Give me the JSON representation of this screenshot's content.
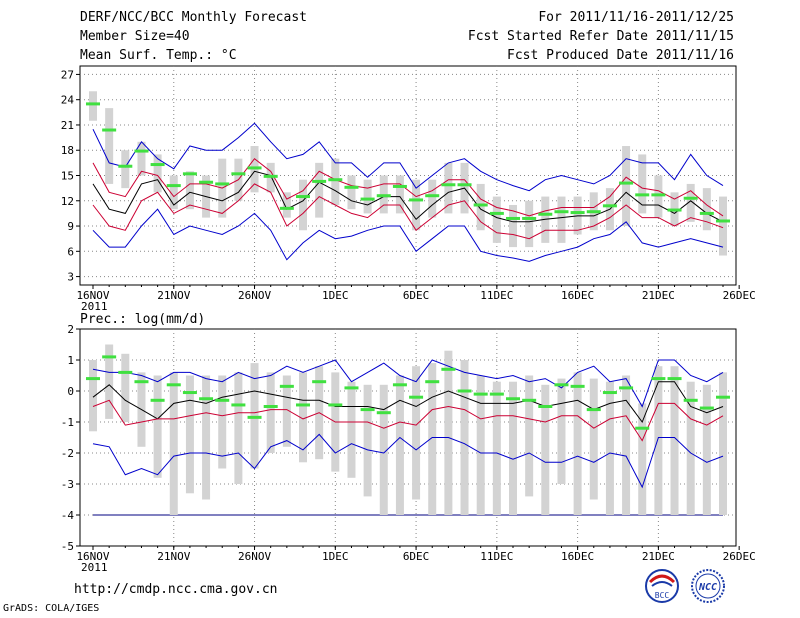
{
  "header": {
    "title": "DERF/NCC/BCC Monthly Forecast",
    "member_size": "Member Size=40",
    "variable_1": "Mean Surf. Temp.: °C",
    "forecast_period": "For 2011/11/16-2011/12/25",
    "started_date": "Fcst Started Refer Date 2011/11/15",
    "produced_date": "Fcst Produced Date 2011/11/16"
  },
  "footer": {
    "url": "http://cmdp.ncc.cma.gov.cn",
    "credit": "GrADS: COLA/IGES",
    "logo_left_text": "BCC",
    "logo_right_text": "NCC"
  },
  "colors": {
    "box": "#d3d3d3",
    "median": "#40e040",
    "ensemble_mean": "#000000",
    "inner_band": "#cc0033",
    "outer_band": "#0000cc",
    "floor_line": "#000080"
  },
  "chart_data": [
    {
      "type": "line",
      "title": "Mean Surf. Temp.: °C",
      "x": [
        "16NOV",
        "17NOV",
        "18NOV",
        "19NOV",
        "20NOV",
        "21NOV",
        "22NOV",
        "23NOV",
        "24NOV",
        "25NOV",
        "26NOV",
        "27NOV",
        "28NOV",
        "29NOV",
        "30NOV",
        "1DEC",
        "2DEC",
        "3DEC",
        "4DEC",
        "5DEC",
        "6DEC",
        "7DEC",
        "8DEC",
        "9DEC",
        "10DEC",
        "11DEC",
        "12DEC",
        "13DEC",
        "14DEC",
        "15DEC",
        "16DEC",
        "17DEC",
        "18DEC",
        "19DEC",
        "20DEC",
        "21DEC",
        "22DEC",
        "23DEC",
        "24DEC",
        "25DEC"
      ],
      "x_tick_labels": [
        "16NOV",
        "21NOV",
        "26NOV",
        "1DEC",
        "6DEC",
        "11DEC",
        "16DEC",
        "21DEC",
        "26DEC"
      ],
      "x_year_label": "2011",
      "ylim": [
        2,
        28
      ],
      "y_ticks": [
        3,
        6,
        9,
        12,
        15,
        18,
        21,
        24,
        27
      ],
      "grid": true,
      "box_low": [
        21.5,
        14,
        13.5,
        15,
        13,
        11,
        11,
        10,
        10,
        12,
        13,
        13,
        10,
        8.5,
        10,
        11.5,
        11,
        10.5,
        10.5,
        10.5,
        8.5,
        10,
        10.5,
        10.5,
        8.5,
        7,
        6.5,
        6.5,
        7,
        7,
        8,
        8.5,
        8.5,
        9,
        10.5,
        10,
        9,
        9.5,
        8.5,
        5.5
      ],
      "box_high": [
        25,
        23,
        18,
        19,
        17.5,
        15,
        15.5,
        15,
        17,
        17,
        18.5,
        16.5,
        13,
        14.5,
        16.5,
        17,
        15,
        14.5,
        15,
        15,
        14.5,
        14.5,
        16.5,
        16.5,
        14,
        12.5,
        11.5,
        12,
        12.5,
        12.5,
        12.5,
        13,
        13.5,
        18.5,
        17.5,
        15,
        13,
        14,
        13.5,
        12.5
      ],
      "series": [
        {
          "name": "median",
          "values": [
            23.5,
            20.4,
            16.1,
            17.9,
            16.3,
            13.8,
            15.2,
            14.2,
            14.0,
            15.2,
            15.9,
            14.9,
            11.1,
            12.5,
            14.3,
            14.5,
            13.6,
            12.2,
            12.6,
            13.7,
            12.1,
            12.6,
            13.9,
            13.9,
            11.5,
            10.5,
            9.9,
            9.9,
            10.4,
            10.7,
            10.6,
            10.7,
            11.4,
            14.1,
            12.7,
            12.7,
            10.9,
            12.3,
            10.5,
            9.6
          ]
        },
        {
          "name": "upper_outer",
          "values": [
            20.5,
            16.5,
            16,
            19,
            17,
            15.8,
            18.5,
            18,
            18,
            19.5,
            21.2,
            19,
            17,
            17.5,
            19,
            16.5,
            16.5,
            14.8,
            16.5,
            16.5,
            13.5,
            15,
            16.5,
            17,
            15.5,
            14.5,
            13.8,
            13.2,
            14.5,
            15,
            14.5,
            14,
            15,
            17,
            16.5,
            16.5,
            14.5,
            17.5,
            15,
            13.8
          ]
        },
        {
          "name": "upper_inner",
          "values": [
            16.5,
            13,
            12.5,
            15.5,
            15,
            12.5,
            14,
            14,
            13.5,
            14.5,
            17,
            15.5,
            12.2,
            13.2,
            15.5,
            14.5,
            13.8,
            13.5,
            14,
            14,
            12.5,
            13.2,
            14.5,
            14.5,
            12.2,
            11.2,
            10.8,
            10.2,
            10.8,
            11.2,
            11.2,
            11.2,
            12.5,
            14.8,
            13.5,
            13.2,
            12.2,
            13.2,
            11.5,
            10.2
          ]
        },
        {
          "name": "mean",
          "values": [
            14,
            11,
            10.5,
            14,
            14.5,
            11.5,
            13,
            12.5,
            12,
            13,
            15.5,
            15,
            11,
            12,
            14.2,
            13.2,
            12,
            11.5,
            12.5,
            12.5,
            9.8,
            11.5,
            13,
            13.5,
            11,
            10,
            9.5,
            9.5,
            9.8,
            10,
            10.2,
            10.2,
            11,
            13,
            11.5,
            11.5,
            10.5,
            12,
            10.5,
            9.5
          ]
        },
        {
          "name": "lower_inner",
          "values": [
            11.5,
            9,
            8.5,
            12,
            13,
            10.5,
            11.5,
            11,
            10.5,
            12,
            14,
            13,
            9,
            10.5,
            12.5,
            11.5,
            10.5,
            10,
            11.5,
            11.5,
            8.5,
            10,
            11.5,
            12,
            9.5,
            8.2,
            8,
            7.5,
            8.5,
            8.5,
            8.5,
            9,
            10,
            11.5,
            10,
            10,
            9,
            10,
            9.5,
            8.8
          ]
        },
        {
          "name": "lower_outer",
          "values": [
            8.5,
            6.5,
            6.5,
            9,
            11,
            8,
            9,
            8.5,
            8,
            9,
            10.5,
            8.5,
            5,
            7,
            8.5,
            7.5,
            7.8,
            8.5,
            9,
            9,
            6,
            7.5,
            9,
            9,
            6,
            5.5,
            5.2,
            4.8,
            5.5,
            6,
            6.5,
            7.5,
            8,
            9.5,
            7,
            6.5,
            7,
            7.5,
            7,
            6.5
          ]
        }
      ]
    },
    {
      "type": "line",
      "title": "Prec.: log(mm/d)",
      "x": [
        "16NOV",
        "17NOV",
        "18NOV",
        "19NOV",
        "20NOV",
        "21NOV",
        "22NOV",
        "23NOV",
        "24NOV",
        "25NOV",
        "26NOV",
        "27NOV",
        "28NOV",
        "29NOV",
        "30NOV",
        "1DEC",
        "2DEC",
        "3DEC",
        "4DEC",
        "5DEC",
        "6DEC",
        "7DEC",
        "8DEC",
        "9DEC",
        "10DEC",
        "11DEC",
        "12DEC",
        "13DEC",
        "14DEC",
        "15DEC",
        "16DEC",
        "17DEC",
        "18DEC",
        "19DEC",
        "20DEC",
        "21DEC",
        "22DEC",
        "23DEC",
        "24DEC",
        "25DEC"
      ],
      "x_tick_labels": [
        "16NOV",
        "21NOV",
        "26NOV",
        "1DEC",
        "6DEC",
        "11DEC",
        "16DEC",
        "21DEC",
        "26DEC"
      ],
      "x_year_label": "2011",
      "ylim": [
        -5,
        2
      ],
      "y_ticks": [
        -5,
        -4,
        -3,
        -2,
        -1,
        0,
        1,
        2
      ],
      "grid": true,
      "floor_value": -4,
      "box_low": [
        -1.3,
        -0.9,
        -1.0,
        -1.8,
        -2.8,
        -4,
        -3.3,
        -3.5,
        -2.5,
        -3.0,
        -2.5,
        -2.0,
        -1.8,
        -2.3,
        -2.2,
        -2.6,
        -2.8,
        -3.4,
        -4,
        -4,
        -3.5,
        -4,
        -4,
        -4,
        -4,
        -4,
        -4,
        -3.4,
        -4,
        -3.0,
        -4,
        -3.5,
        -4,
        -4,
        -4,
        -4,
        -4,
        -4,
        -4,
        -4
      ],
      "box_high": [
        1.0,
        1.5,
        1.2,
        0.6,
        0.5,
        0.6,
        0.5,
        0.5,
        0.5,
        0.6,
        0.9,
        0.6,
        0.5,
        0.6,
        0.8,
        0.6,
        0.3,
        0.2,
        0.2,
        0.5,
        0.8,
        0.9,
        1.3,
        1.0,
        0.5,
        0.3,
        0.3,
        0.5,
        0.2,
        0.4,
        0.6,
        0.4,
        0.3,
        0.5,
        -0.4,
        0.8,
        0.8,
        0.3,
        0.2,
        0.6
      ],
      "series": [
        {
          "name": "median",
          "values": [
            0.4,
            1.1,
            0.6,
            0.3,
            -0.3,
            0.2,
            -0.05,
            -0.25,
            -0.3,
            -0.45,
            -0.85,
            -0.5,
            0.15,
            -0.45,
            0.3,
            -0.45,
            0.1,
            -0.6,
            -0.7,
            0.2,
            -0.2,
            0.3,
            0.7,
            0.0,
            -0.1,
            -0.1,
            -0.25,
            -0.3,
            -0.5,
            0.2,
            0.15,
            -0.6,
            -0.05,
            0.1,
            -1.2,
            0.4,
            0.4,
            -0.3,
            -0.55,
            -0.2
          ]
        },
        {
          "name": "upper_outer",
          "values": [
            0.7,
            0.6,
            0.6,
            0.5,
            0.3,
            0.6,
            0.6,
            0.4,
            0.3,
            0.6,
            0.4,
            0.5,
            0.8,
            0.6,
            0.8,
            1.0,
            0.3,
            0.6,
            0.9,
            0.5,
            0.3,
            1.0,
            0.8,
            0.6,
            0.5,
            0.4,
            0.5,
            0.3,
            0.4,
            0.1,
            0.6,
            0.8,
            0.3,
            0.4,
            -0.5,
            1.0,
            1.0,
            0.5,
            0.3,
            0.6
          ]
        },
        {
          "name": "mean",
          "values": [
            -0.2,
            0.2,
            -0.3,
            -0.6,
            -0.9,
            -0.4,
            -0.3,
            -0.4,
            -0.2,
            -0.1,
            0.0,
            -0.1,
            -0.2,
            -0.3,
            -0.3,
            -0.5,
            -0.5,
            -0.5,
            -0.6,
            -0.3,
            -0.5,
            -0.2,
            0.0,
            -0.2,
            -0.4,
            -0.4,
            -0.4,
            -0.3,
            -0.5,
            -0.4,
            -0.3,
            -0.6,
            -0.4,
            -0.3,
            -1.0,
            0.3,
            0.3,
            -0.5,
            -0.7,
            -0.5
          ]
        },
        {
          "name": "lower_inner",
          "values": [
            -0.5,
            -0.3,
            -1.1,
            -1.0,
            -0.9,
            -0.9,
            -0.8,
            -0.7,
            -0.8,
            -0.7,
            -0.7,
            -0.6,
            -0.6,
            -0.9,
            -0.7,
            -1.0,
            -1.0,
            -1.0,
            -1.2,
            -1.0,
            -1.1,
            -0.6,
            -0.5,
            -0.6,
            -0.9,
            -0.8,
            -0.8,
            -0.9,
            -1.0,
            -0.8,
            -0.8,
            -1.2,
            -0.9,
            -0.8,
            -1.6,
            -0.4,
            -0.4,
            -0.9,
            -1.1,
            -0.8
          ]
        },
        {
          "name": "lower_outer",
          "values": [
            -1.7,
            -1.8,
            -2.7,
            -2.5,
            -2.7,
            -2.1,
            -2.0,
            -2.0,
            -2.1,
            -2.0,
            -2.5,
            -1.8,
            -1.6,
            -1.9,
            -1.4,
            -2.0,
            -1.7,
            -1.9,
            -2.0,
            -1.5,
            -1.9,
            -1.5,
            -1.5,
            -1.7,
            -2.0,
            -2.0,
            -2.2,
            -2.0,
            -2.3,
            -2.3,
            -2.1,
            -2.3,
            -2.0,
            -2.1,
            -3.1,
            -1.5,
            -1.5,
            -2.0,
            -2.3,
            -2.1
          ]
        }
      ]
    }
  ]
}
